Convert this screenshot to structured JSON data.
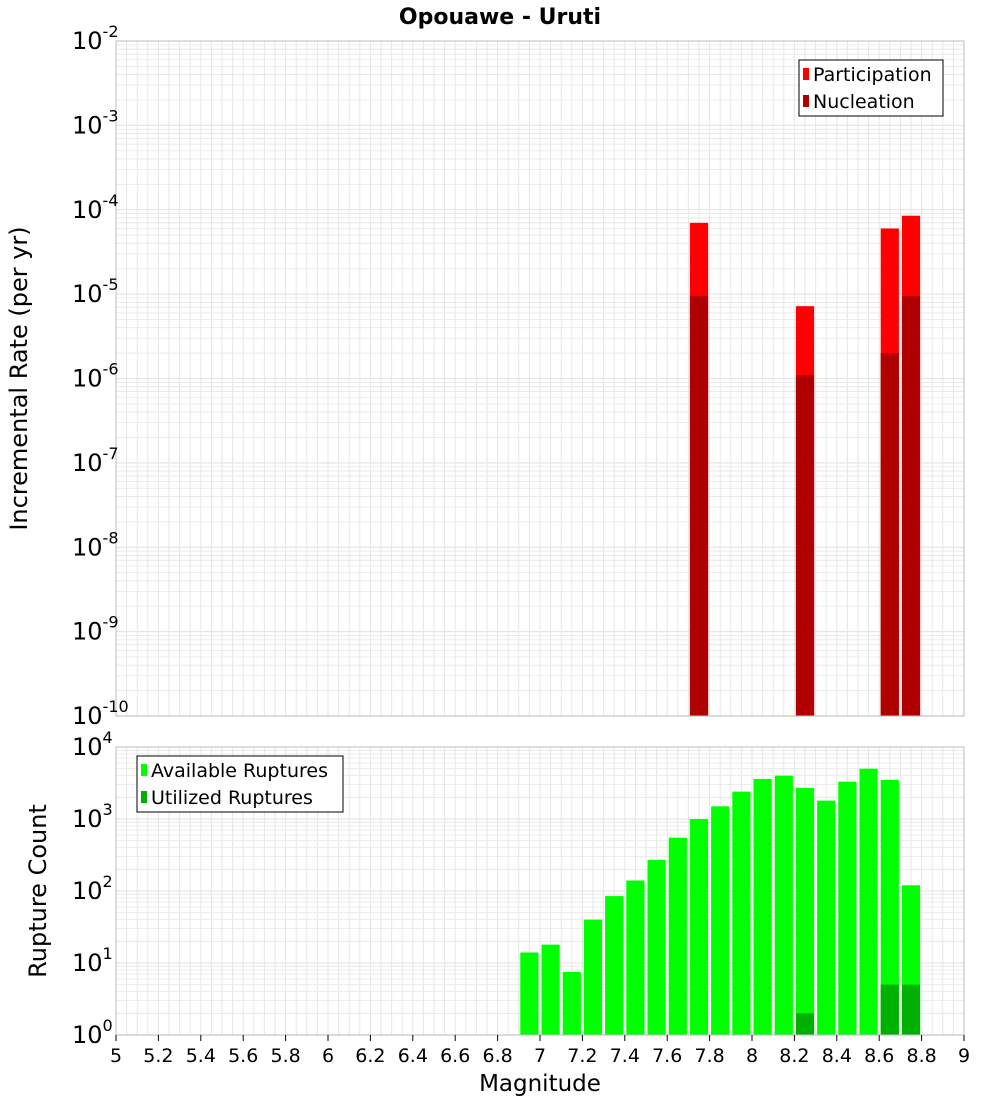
{
  "title": "Opouawe - Uruti",
  "colors": {
    "participation": "#ff0000",
    "nucleation": "#b00000",
    "available": "#00ff00",
    "utilized": "#00b000",
    "grid": "#e6e6e6",
    "frame": "#bdbdbd"
  },
  "chart_data": [
    {
      "type": "bar",
      "scale": "log",
      "ylabel": "Incremental Rate (per yr)",
      "ylim_exponents": [
        -10,
        -2
      ],
      "legend_position": "top-right",
      "legend": [
        "Participation",
        "Nucleation"
      ],
      "series": [
        {
          "name": "Participation",
          "x": [
            7.75,
            8.25,
            8.65,
            8.75
          ],
          "values": [
            7e-05,
            7.2e-06,
            6e-05,
            8.5e-05
          ]
        },
        {
          "name": "Nucleation",
          "x": [
            7.75,
            8.25,
            8.65,
            8.75
          ],
          "values": [
            9.5e-06,
            1.1e-06,
            2e-06,
            9.5e-06
          ]
        }
      ]
    },
    {
      "type": "bar",
      "scale": "log",
      "xlabel": "Magnitude",
      "ylabel": "Rupture Count",
      "ylim_exponents": [
        0,
        4
      ],
      "xlim": [
        5,
        9
      ],
      "legend_position": "top-left",
      "legend": [
        "Available Ruptures",
        "Utilized Ruptures"
      ],
      "series": [
        {
          "name": "Available Ruptures",
          "x": [
            6.95,
            7.05,
            7.15,
            7.25,
            7.35,
            7.45,
            7.55,
            7.65,
            7.75,
            7.85,
            7.95,
            8.05,
            8.15,
            8.25,
            8.35,
            8.45,
            8.55,
            8.65,
            8.75
          ],
          "values": [
            14,
            18,
            7.5,
            40,
            85,
            140,
            270,
            550,
            1000,
            1500,
            2400,
            3600,
            4000,
            2700,
            1800,
            3300,
            5000,
            3500,
            120
          ]
        },
        {
          "name": "Utilized Ruptures",
          "x": [
            7.75,
            8.25,
            8.65,
            8.75
          ],
          "values": [
            1,
            2,
            5,
            5
          ]
        }
      ],
      "x_ticks": [
        "5",
        "5.2",
        "5.4",
        "5.6",
        "5.8",
        "6",
        "6.2",
        "6.4",
        "6.6",
        "6.8",
        "7",
        "7.2",
        "7.4",
        "7.6",
        "7.8",
        "8",
        "8.2",
        "8.4",
        "8.6",
        "8.8",
        "9"
      ]
    }
  ]
}
